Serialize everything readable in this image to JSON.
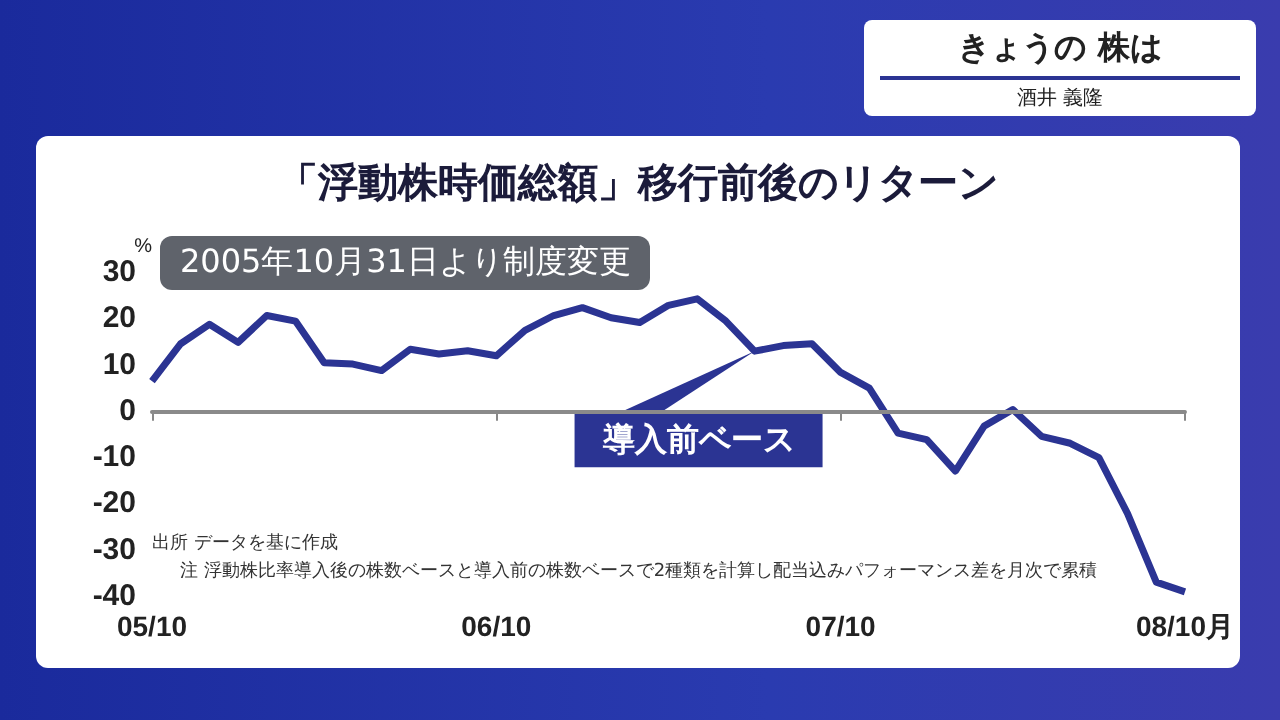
{
  "chart_data": {
    "type": "line",
    "title": "「浮動株時価総額」移行前後のリターン",
    "subtitle": "きょうの 株は",
    "ylabel": "%",
    "annotations": [
      "酒井 義隆",
      "2005年10月31日より制度変更",
      "出所 データを基に作成",
      "注 浮動株比率導入後の株数ベースと導入前の株数ベースで2種類を計算し配当込みパフォーマンス差を月次で累積"
    ],
    "categories": [
      "05/10",
      null,
      null,
      null,
      null,
      null,
      null,
      null,
      null,
      null,
      null,
      null,
      "06/10",
      null,
      null,
      null,
      null,
      null,
      null,
      null,
      null,
      null,
      null,
      null,
      "07/10",
      null,
      null,
      null,
      null,
      null,
      null,
      null,
      null,
      null,
      null,
      null,
      "08/10月"
    ],
    "series": [
      {
        "name": "導入前ベース",
        "color": "#2b3493",
        "values": [
          6.4,
          14.5,
          18.7,
          14.8,
          20.6,
          19.4,
          10.4,
          10.1,
          8.7,
          13.3,
          12.3,
          13,
          11.9,
          17.4,
          20.6,
          22.3,
          20.1,
          19.1,
          22.8,
          24.2,
          19.4,
          12.9,
          14.1,
          14.5,
          8.3,
          4.9,
          -4.8,
          -6.2,
          -13,
          -3.3,
          0.3,
          -5.5,
          -7,
          -10.1,
          -22.2,
          -37,
          -39.1
        ]
      }
    ],
    "ylim": [
      -40,
      30
    ],
    "yticks": [
      -40,
      -30,
      -20,
      -10,
      0,
      10,
      20,
      30
    ],
    "ref_lines": [
      {
        "axis": "y",
        "value": 0,
        "color": "#8a8a8a"
      }
    ],
    "grid": false,
    "legend": "center",
    "marker": "none",
    "line_style": "solid"
  }
}
